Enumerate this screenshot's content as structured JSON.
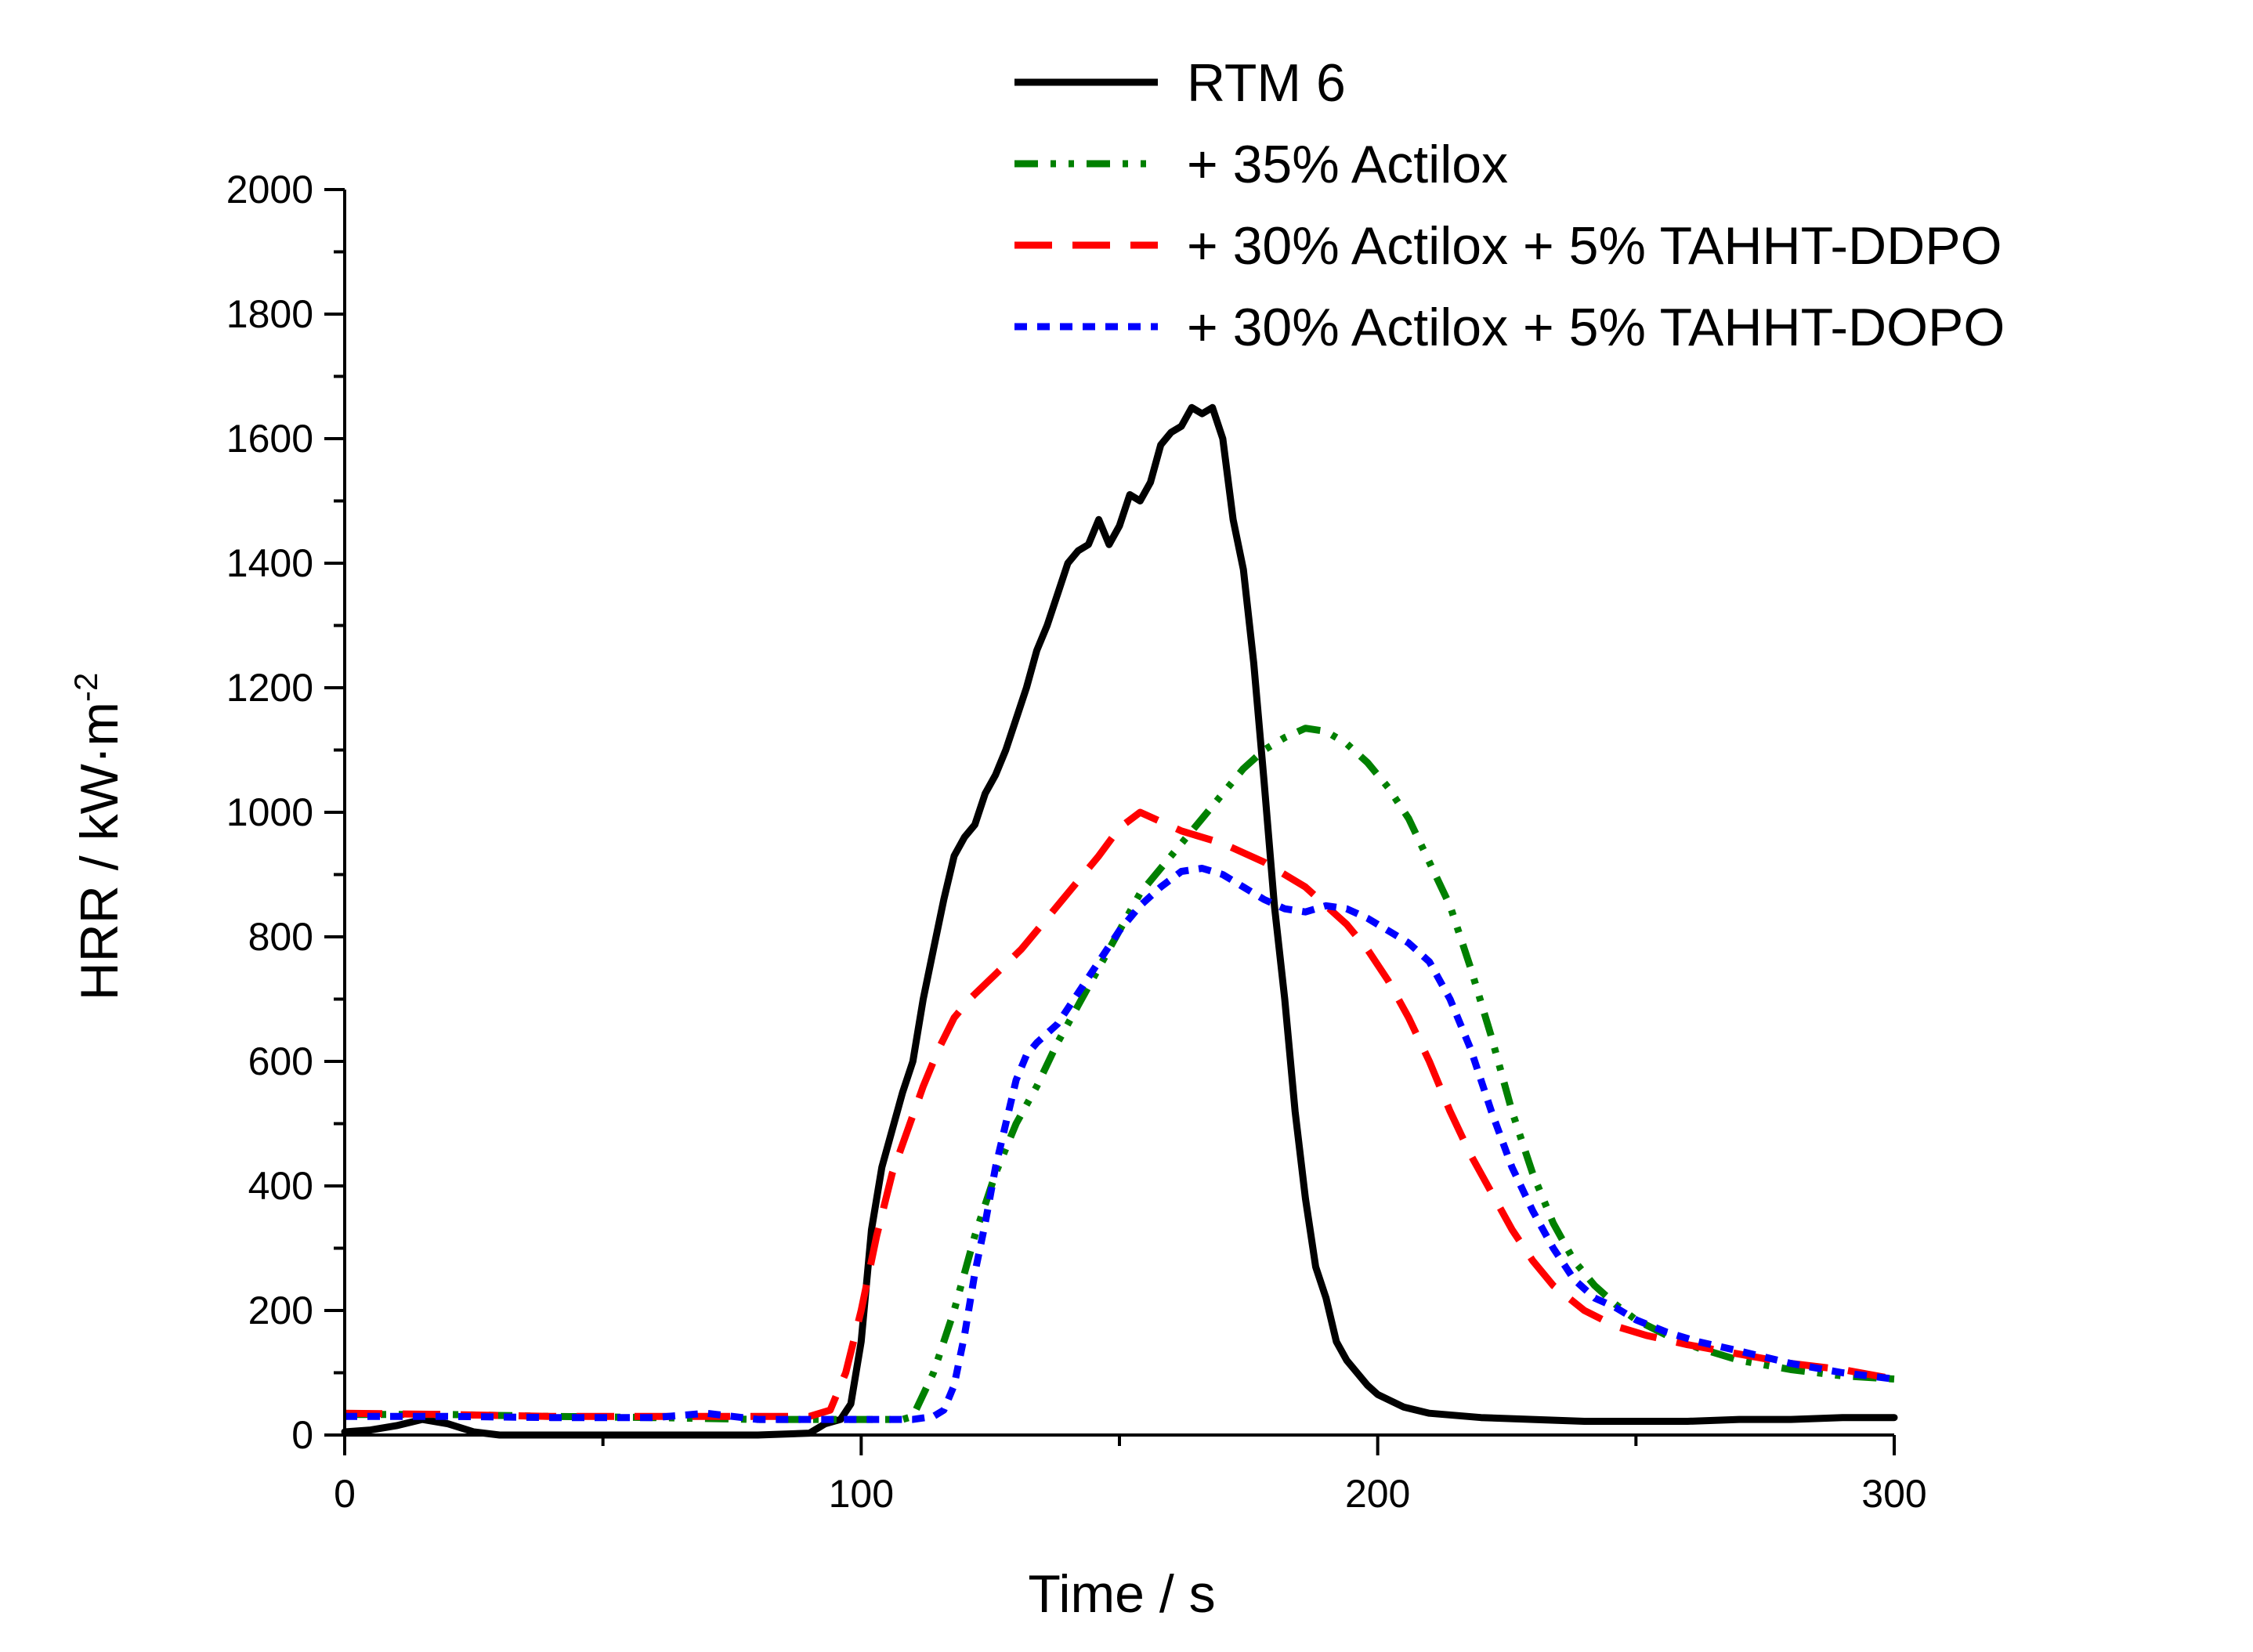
{
  "chart_data": {
    "type": "line",
    "title": "",
    "xlabel": "Time / s",
    "ylabel": "HRR / kW·m",
    "ylabel_superscript": "-2",
    "xlim": [
      0,
      300
    ],
    "ylim": [
      0,
      2000
    ],
    "x_ticks": [
      0,
      100,
      200,
      300
    ],
    "x_tick_labels": [
      "0",
      "100",
      "200",
      "300"
    ],
    "x_minor_step": 50,
    "y_ticks": [
      0,
      200,
      400,
      600,
      800,
      1000,
      1200,
      1400,
      1600,
      1800,
      2000
    ],
    "y_tick_labels": [
      "0",
      "200",
      "400",
      "600",
      "800",
      "1000",
      "1200",
      "1400",
      "1600",
      "1800",
      "2000"
    ],
    "y_minor_step": 100,
    "grid": false,
    "legend_position": "top-right",
    "series": [
      {
        "name": "RTM 6",
        "color": "#000000",
        "dash": "solid",
        "points": [
          [
            0,
            5
          ],
          [
            5,
            8
          ],
          [
            10,
            15
          ],
          [
            15,
            25
          ],
          [
            20,
            18
          ],
          [
            25,
            5
          ],
          [
            30,
            0
          ],
          [
            40,
            0
          ],
          [
            50,
            0
          ],
          [
            60,
            0
          ],
          [
            70,
            0
          ],
          [
            80,
            0
          ],
          [
            90,
            3
          ],
          [
            93,
            18
          ],
          [
            96,
            25
          ],
          [
            98,
            50
          ],
          [
            100,
            150
          ],
          [
            102,
            330
          ],
          [
            104,
            430
          ],
          [
            106,
            490
          ],
          [
            108,
            550
          ],
          [
            110,
            600
          ],
          [
            112,
            700
          ],
          [
            114,
            780
          ],
          [
            116,
            860
          ],
          [
            118,
            930
          ],
          [
            120,
            960
          ],
          [
            122,
            980
          ],
          [
            124,
            1030
          ],
          [
            126,
            1060
          ],
          [
            128,
            1100
          ],
          [
            130,
            1150
          ],
          [
            132,
            1200
          ],
          [
            134,
            1260
          ],
          [
            136,
            1300
          ],
          [
            138,
            1350
          ],
          [
            140,
            1400
          ],
          [
            142,
            1420
          ],
          [
            144,
            1430
          ],
          [
            146,
            1470
          ],
          [
            148,
            1430
          ],
          [
            150,
            1460
          ],
          [
            152,
            1510
          ],
          [
            154,
            1500
          ],
          [
            156,
            1530
          ],
          [
            158,
            1590
          ],
          [
            160,
            1610
          ],
          [
            162,
            1620
          ],
          [
            164,
            1650
          ],
          [
            166,
            1640
          ],
          [
            168,
            1650
          ],
          [
            170,
            1600
          ],
          [
            172,
            1470
          ],
          [
            174,
            1390
          ],
          [
            176,
            1240
          ],
          [
            178,
            1050
          ],
          [
            180,
            850
          ],
          [
            182,
            700
          ],
          [
            184,
            520
          ],
          [
            186,
            380
          ],
          [
            188,
            270
          ],
          [
            190,
            220
          ],
          [
            192,
            150
          ],
          [
            194,
            120
          ],
          [
            196,
            100
          ],
          [
            198,
            80
          ],
          [
            200,
            65
          ],
          [
            205,
            45
          ],
          [
            210,
            35
          ],
          [
            220,
            28
          ],
          [
            230,
            25
          ],
          [
            240,
            22
          ],
          [
            250,
            22
          ],
          [
            260,
            22
          ],
          [
            270,
            25
          ],
          [
            280,
            25
          ],
          [
            290,
            28
          ],
          [
            300,
            28
          ]
        ]
      },
      {
        "name": "+ 35% Actilox",
        "color": "#008000",
        "dash": "dashdotdot",
        "points": [
          [
            0,
            33
          ],
          [
            20,
            33
          ],
          [
            40,
            30
          ],
          [
            60,
            28
          ],
          [
            80,
            25
          ],
          [
            90,
            25
          ],
          [
            100,
            25
          ],
          [
            108,
            25
          ],
          [
            110,
            30
          ],
          [
            114,
            100
          ],
          [
            118,
            200
          ],
          [
            122,
            320
          ],
          [
            126,
            420
          ],
          [
            130,
            500
          ],
          [
            134,
            560
          ],
          [
            138,
            630
          ],
          [
            142,
            690
          ],
          [
            146,
            750
          ],
          [
            150,
            810
          ],
          [
            154,
            870
          ],
          [
            158,
            910
          ],
          [
            162,
            950
          ],
          [
            166,
            990
          ],
          [
            170,
            1030
          ],
          [
            174,
            1070
          ],
          [
            178,
            1100
          ],
          [
            182,
            1120
          ],
          [
            186,
            1135
          ],
          [
            190,
            1130
          ],
          [
            194,
            1110
          ],
          [
            198,
            1080
          ],
          [
            202,
            1040
          ],
          [
            206,
            990
          ],
          [
            210,
            920
          ],
          [
            214,
            850
          ],
          [
            218,
            750
          ],
          [
            222,
            640
          ],
          [
            226,
            520
          ],
          [
            230,
            420
          ],
          [
            234,
            340
          ],
          [
            238,
            280
          ],
          [
            242,
            240
          ],
          [
            246,
            210
          ],
          [
            250,
            185
          ],
          [
            256,
            160
          ],
          [
            262,
            140
          ],
          [
            270,
            120
          ],
          [
            280,
            105
          ],
          [
            290,
            95
          ],
          [
            300,
            90
          ]
        ]
      },
      {
        "name": "+ 30% Actilox + 5% TAHHT-DDPO",
        "color": "#ff0000",
        "dash": "longdash",
        "points": [
          [
            0,
            35
          ],
          [
            20,
            33
          ],
          [
            40,
            30
          ],
          [
            60,
            30
          ],
          [
            80,
            30
          ],
          [
            90,
            30
          ],
          [
            94,
            40
          ],
          [
            97,
            100
          ],
          [
            100,
            200
          ],
          [
            103,
            320
          ],
          [
            106,
            420
          ],
          [
            109,
            490
          ],
          [
            112,
            560
          ],
          [
            115,
            620
          ],
          [
            118,
            670
          ],
          [
            121,
            700
          ],
          [
            126,
            740
          ],
          [
            131,
            780
          ],
          [
            136,
            830
          ],
          [
            141,
            880
          ],
          [
            146,
            930
          ],
          [
            150,
            975
          ],
          [
            154,
            1000
          ],
          [
            158,
            985
          ],
          [
            162,
            970
          ],
          [
            166,
            960
          ],
          [
            170,
            950
          ],
          [
            174,
            935
          ],
          [
            178,
            920
          ],
          [
            182,
            900
          ],
          [
            186,
            880
          ],
          [
            190,
            850
          ],
          [
            194,
            820
          ],
          [
            198,
            780
          ],
          [
            202,
            730
          ],
          [
            206,
            670
          ],
          [
            210,
            600
          ],
          [
            214,
            520
          ],
          [
            218,
            450
          ],
          [
            222,
            390
          ],
          [
            226,
            330
          ],
          [
            230,
            280
          ],
          [
            234,
            240
          ],
          [
            240,
            200
          ],
          [
            246,
            175
          ],
          [
            252,
            160
          ],
          [
            260,
            145
          ],
          [
            270,
            130
          ],
          [
            280,
            115
          ],
          [
            290,
            105
          ],
          [
            300,
            90
          ]
        ]
      },
      {
        "name": "+ 30% Actilox + 5% TAHHT-DOPO",
        "color": "#0000ff",
        "dash": "shortdash",
        "points": [
          [
            0,
            30
          ],
          [
            20,
            30
          ],
          [
            40,
            28
          ],
          [
            60,
            28
          ],
          [
            70,
            35
          ],
          [
            80,
            25
          ],
          [
            90,
            25
          ],
          [
            100,
            25
          ],
          [
            110,
            25
          ],
          [
            114,
            30
          ],
          [
            116,
            40
          ],
          [
            118,
            80
          ],
          [
            120,
            160
          ],
          [
            122,
            260
          ],
          [
            124,
            340
          ],
          [
            126,
            430
          ],
          [
            128,
            500
          ],
          [
            130,
            570
          ],
          [
            132,
            610
          ],
          [
            134,
            630
          ],
          [
            138,
            660
          ],
          [
            142,
            710
          ],
          [
            146,
            760
          ],
          [
            150,
            810
          ],
          [
            154,
            850
          ],
          [
            158,
            880
          ],
          [
            162,
            905
          ],
          [
            166,
            910
          ],
          [
            170,
            900
          ],
          [
            174,
            880
          ],
          [
            178,
            860
          ],
          [
            182,
            845
          ],
          [
            186,
            840
          ],
          [
            190,
            850
          ],
          [
            194,
            845
          ],
          [
            198,
            830
          ],
          [
            202,
            810
          ],
          [
            206,
            790
          ],
          [
            210,
            760
          ],
          [
            214,
            700
          ],
          [
            218,
            620
          ],
          [
            222,
            520
          ],
          [
            226,
            430
          ],
          [
            230,
            360
          ],
          [
            234,
            300
          ],
          [
            238,
            250
          ],
          [
            242,
            220
          ],
          [
            246,
            205
          ],
          [
            250,
            185
          ],
          [
            256,
            165
          ],
          [
            262,
            150
          ],
          [
            270,
            135
          ],
          [
            280,
            115
          ],
          [
            290,
            100
          ],
          [
            300,
            90
          ]
        ]
      }
    ]
  }
}
